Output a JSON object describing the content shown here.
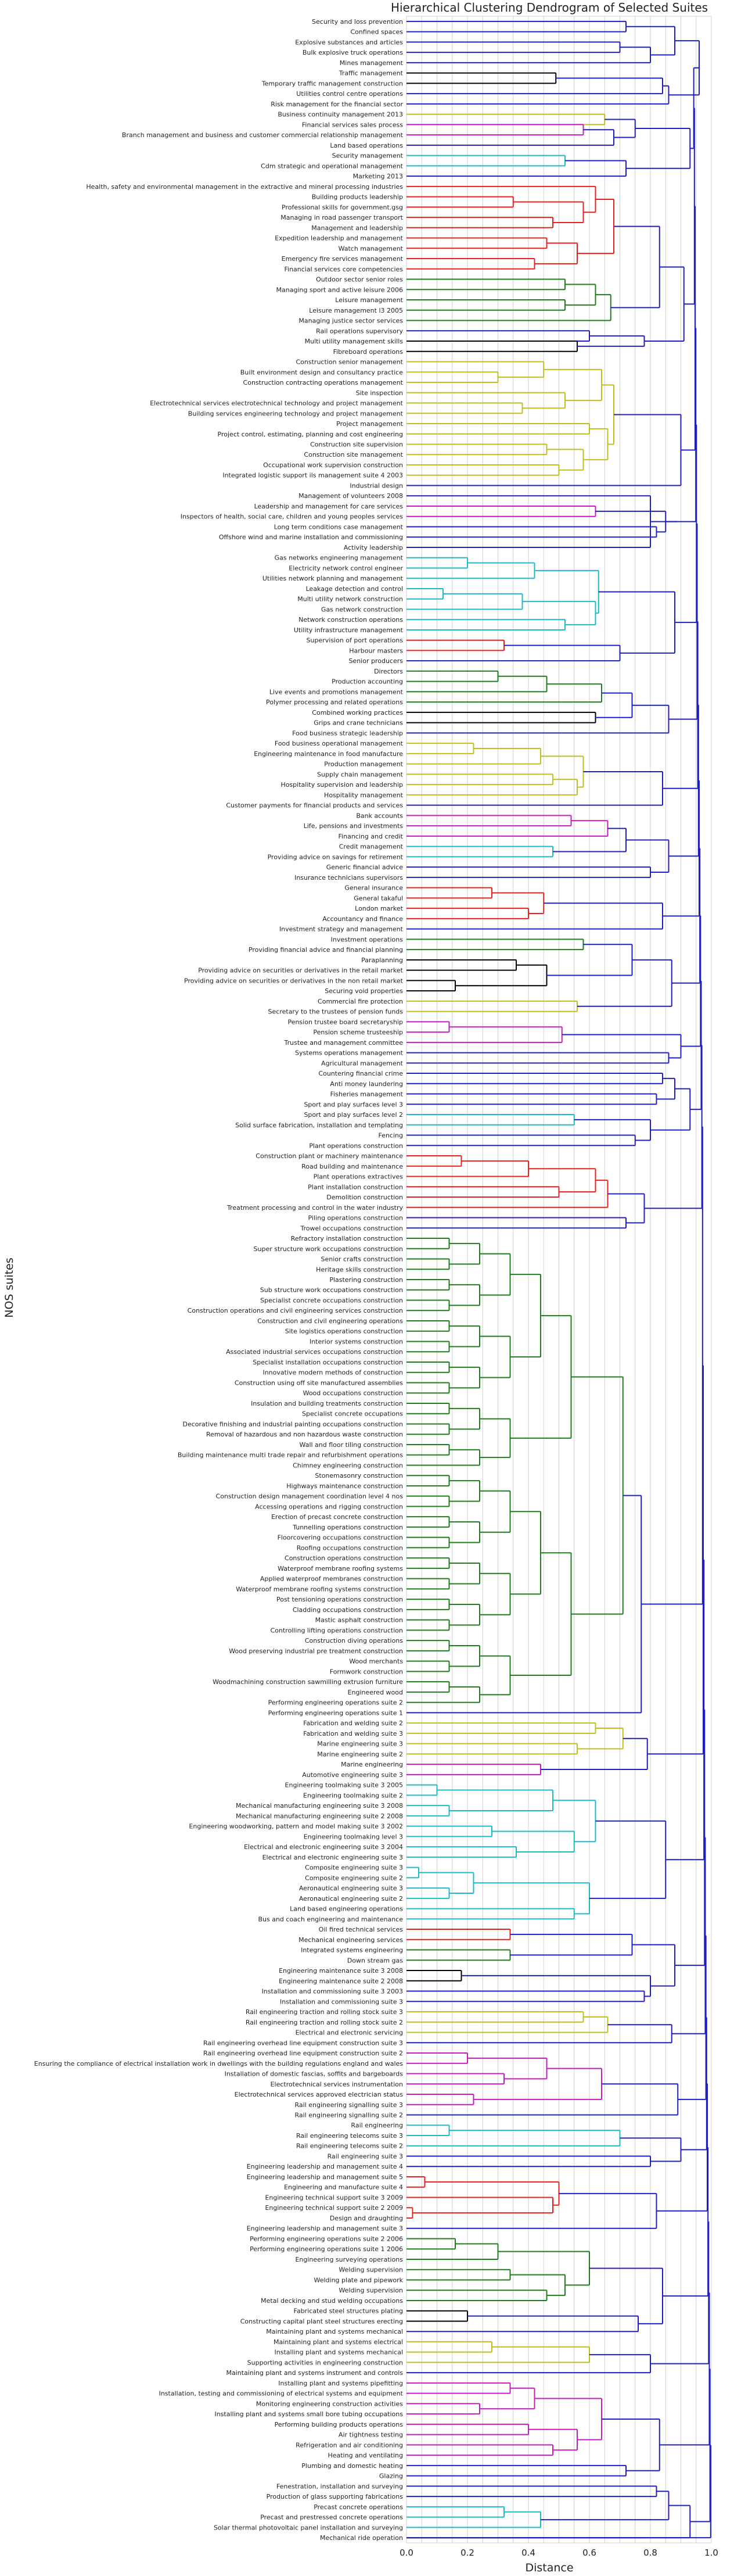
{
  "chart_data": {
    "type": "dendrogram",
    "title": "Hierarchical Clustering Dendrogram of Selected Suites",
    "xlabel": "Distance",
    "ylabel": "NOS suites",
    "xlim": [
      0.0,
      1.0
    ],
    "xticks": [
      "0.0",
      "0.2",
      "0.4",
      "0.6",
      "0.8",
      "1.0"
    ],
    "grid": true,
    "orientation": "left",
    "colors": {
      "blue": "#1f1fbf",
      "red": "#e8211f",
      "green": "#1e7b1e",
      "cyan": "#1eb8c8",
      "magenta": "#bf1fbf",
      "yellow": "#bfbf1f",
      "black": "#000000"
    },
    "leaves": [
      "Security and loss prevention",
      "Confined spaces",
      "Explosive substances and articles",
      "Bulk explosive truck operations",
      "Mines management",
      "Traffic management",
      "Temporary traffic management construction",
      "Utilities control centre operations",
      "Risk management for the financial sector",
      "Business continuity management 2013",
      "Financial services sales process",
      "Branch management and business and customer commercial relationship management",
      "Land based operations",
      "Security management",
      "Cdm strategic and operational management",
      "Marketing 2013",
      "Health, safety and environmental management in the extractive and mineral processing industries",
      "Building products leadership",
      "Professional skills for government.gsg",
      "Managing in road passenger transport",
      "Management and leadership",
      "Expedition leadership and management",
      "Watch management",
      "Emergency fire services management",
      "Financial services core competencies",
      "Outdoor sector senior roles",
      "Managing sport and active leisure 2006",
      "Leisure management",
      "Leisure management l3 2005",
      "Managing justice sector services",
      "Rail operations supervisory",
      "Multi utility management skills",
      "Fibreboard operations",
      "Construction senior management",
      "Built environment design and consultancy practice",
      "Construction contracting operations management",
      "Site inspection",
      "Electrotechnical services electrotechnical technology and project management",
      "Building services engineering technology and project management",
      "Project management",
      "Project control, estimating, planning and cost engineering",
      "Construction site supervision",
      "Construction site management",
      "Occupational work supervision construction",
      "Integrated logistic support ils management suite 4 2003",
      "Industrial design",
      "Management of volunteers 2008",
      "Leadership and management for care services",
      "Inspectors of health, social care, children and young peoples services",
      "Long term conditions case management",
      "Offshore wind and marine installation and commissioning",
      "Activity leadership",
      "Gas networks engineering management",
      "Electricity network control engineer",
      "Utilities network planning and management",
      "Leakage detection and control",
      "Multi utility network construction",
      "Gas network construction",
      "Network construction operations",
      "Utility infrastructure management",
      "Supervision of port operations",
      "Harbour masters",
      "Senior producers",
      "Directors",
      "Production accounting",
      "Live events and promotions management",
      "Polymer processing and related operations",
      "Combined working practices",
      "Grips and crane technicians",
      "Food business strategic leadership",
      "Food business operational management",
      "Engineering maintenance in food manufacture",
      "Production management",
      "Supply chain management",
      "Hospitality supervision and leadership",
      "Hospitality management",
      "Customer payments for financial products and services",
      "Bank accounts",
      "Life, pensions and investments",
      "Financing and credit",
      "Credit management",
      "Providing advice on savings for retirement",
      "Generic financial advice",
      "Insurance technicians supervisors",
      "General insurance",
      "General takaful",
      "London market",
      "Accountancy and finance",
      "Investment strategy and management",
      "Investment operations",
      "Providing financial advice and financial planning",
      "Paraplanning",
      "Providing advice on securities or derivatives in the retail market",
      "Providing advice on securities or derivatives in the non retail market",
      "Securing void properties",
      "Commercial fire protection",
      "Secretary to the trustees of pension funds",
      "Pension trustee board secretaryship",
      "Pension scheme trusteeship",
      "Trustee and management committee",
      "Systems operations management",
      "Agricultural management",
      "Countering financial crime",
      "Anti money laundering",
      "Fisheries management",
      "Sport and play surfaces level 3",
      "Sport and play surfaces level 2",
      "Solid surface fabrication, installation and templating",
      "Fencing",
      "Plant operations construction",
      "Construction plant or machinery maintenance",
      "Road building and maintenance",
      "Plant operations extractives",
      "Plant installation construction",
      "Demolition construction",
      "Treatment processing and control in the water industry",
      "Piling operations construction",
      "Trowel occupations construction",
      "Refractory installation construction",
      "Super structure work occupations construction",
      "Senior crafts construction",
      "Heritage skills construction",
      "Plastering construction",
      "Sub structure work occupations construction",
      "Specialist concrete occupations construction",
      "Construction operations and civil engineering services construction",
      "Construction and civil engineering operations",
      "Site logistics operations construction",
      "Interior systems construction",
      "Associated industrial services occupations construction",
      "Specialist installation occupations construction",
      "Innovative modern methods of construction",
      "Construction using off site manufactured assemblies",
      "Wood occupations construction",
      "Insulation and building treatments construction",
      "Specialist concrete occupations",
      "Decorative finishing and industrial painting occupations construction",
      "Removal of hazardous and non hazardous waste construction",
      "Wall and floor tiling construction",
      "Building maintenance multi trade repair and refurbishment operations",
      "Chimney engineering construction",
      "Stonemasonry construction",
      "Highways maintenance construction",
      "Construction design management coordination level 4 nos",
      "Accessing operations and rigging construction",
      "Erection of precast concrete construction",
      "Tunnelling operations construction",
      "Floorcovering occupations construction",
      "Roofing occupations construction",
      "Construction operations construction",
      "Waterproof membrane roofing systems",
      "Applied waterproof membranes construction",
      "Waterproof membrane roofing systems construction",
      "Post tensioning operations construction",
      "Cladding occupations construction",
      "Mastic asphalt construction",
      "Controlling lifting operations construction",
      "Construction diving operations",
      "Wood preserving industrial pre treatment construction",
      "Wood merchants",
      "Formwork construction",
      "Woodmachining construction sawmilling extrusion furniture",
      "Engineered wood",
      "Performing engineering operations suite 2",
      "Performing engineering operations suite 1",
      "Fabrication and welding suite 2",
      "Fabrication and welding suite 3",
      "Marine engineering suite 3",
      "Marine engineering suite 2",
      "Marine engineering",
      "Automotive engineering suite 3",
      "Engineering toolmaking suite 3 2005",
      "Engineering toolmaking suite 2",
      "Mechanical manufacturing engineering suite 3 2008",
      "Mechanical manufacturing engineering suite 2 2008",
      "Engineering woodworking, pattern and model making suite 3 2002",
      "Engineering toolmaking level 3",
      "Electrical and electronic engineering suite 3 2004",
      "Electrical and electronic engineering suite 3",
      "Composite engineering suite 3",
      "Composite engineering suite 2",
      "Aeronautical engineering suite 3",
      "Aeronautical engineering suite 2",
      "Land based engineering operations",
      "Bus and coach engineering and maintenance",
      "Oil fired technical services",
      "Mechanical engineering services",
      "Integrated systems engineering",
      "Down stream gas",
      "Engineering maintenance suite 3 2008",
      "Engineering maintenance suite 2 2008",
      "Installation and commissioning suite 3 2003",
      "Installation and commissioning suite 3",
      "Rail engineering traction and rolling stock suite 3",
      "Rail engineering traction and rolling stock suite 2",
      "Electrical and electronic servicing",
      "Rail engineering overhead line equipment construction suite 3",
      "Rail engineering overhead line equipment construction suite 2",
      "Ensuring the compliance of electrical installation work in dwellings with the building regulations england and wales",
      "Installation of domestic fascias, soffits and bargeboards",
      "Electrotechnical services instrumentation",
      "Electrotechnical services approved electrician status",
      "Rail engineering signalling suite 3",
      "Rail engineering signalling suite 2",
      "Rail engineering",
      "Rail engineering telecoms suite 3",
      "Rail engineering telecoms suite 2",
      "Rail engineering suite 3",
      "Engineering leadership and management suite 4",
      "Engineering leadership and management suite 5",
      "Engineering and manufacture suite 4",
      "Engineering technical support suite 3 2009",
      "Engineering technical support suite 2 2009",
      "Design and draughting",
      "Engineering leadership and management suite 3",
      "Performing engineering operations suite 2 2006",
      "Performing engineering operations suite 1 2006",
      "Engineering surveying operations",
      "Welding supervision",
      "Welding plate and pipework",
      "Welding supervision",
      "Metal decking and stud welding occupations",
      "Fabricated steel structures plating",
      "Constructing capital plant steel structures erecting",
      "Maintaining plant and systems mechanical",
      "Maintaining plant and systems electrical",
      "Installing plant and systems mechanical",
      "Supporting activities in engineering construction",
      "Maintaining plant and systems instrument and controls",
      "Installing plant and systems pipefitting",
      "Installation, testing and commissioning of electrical systems and equipment",
      "Monitoring engineering construction activities",
      "Installing plant and systems small bore tubing occupations",
      "Performing building products operations",
      "Air tightness testing",
      "Refrigeration and air conditioning",
      "Heating and ventilating",
      "Plumbing and domestic heating",
      "Glazing",
      "Fenestration, installation and surveying",
      "Production of glass supporting fabrications",
      "Precast concrete operations",
      "Precast and prestressed concrete operations",
      "Solar thermal photovoltaic panel installation and surveying",
      "Mechanical ride operation"
    ],
    "top_level_merge_heights": [
      0.91,
      0.92,
      0.93,
      0.94,
      0.96,
      0.97,
      1.0
    ]
  },
  "icons": {
    "none": ""
  }
}
